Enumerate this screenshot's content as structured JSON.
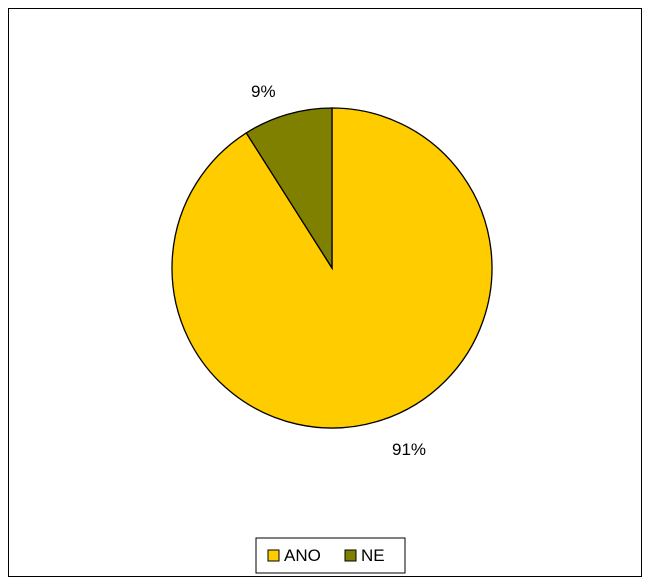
{
  "chart_data": {
    "type": "pie",
    "title": "",
    "slices": [
      {
        "name": "ANO",
        "value": 91,
        "label": "91%",
        "color": "#FFCC00"
      },
      {
        "name": "NE",
        "value": 9,
        "label": "9%",
        "color": "#808000"
      }
    ],
    "legend": {
      "placement": "bottom",
      "items": [
        "ANO",
        "NE"
      ]
    }
  }
}
